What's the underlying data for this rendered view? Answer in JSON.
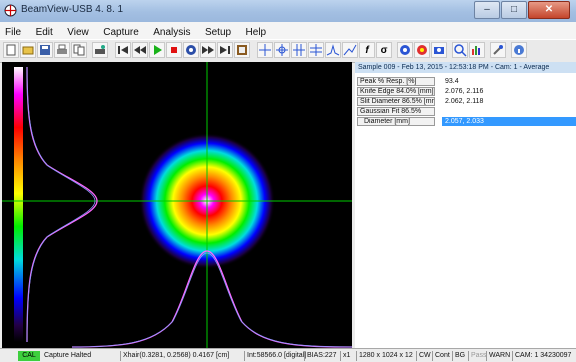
{
  "window": {
    "title": "BeamView-USB 4. 8. 1"
  },
  "menu": [
    "File",
    "Edit",
    "View",
    "Capture",
    "Analysis",
    "Setup",
    "Help"
  ],
  "toolbar": {
    "icons": [
      "new-file-icon",
      "open-folder-icon",
      "save-icon",
      "print-icon",
      "copy-icon",
      "printer-setup-icon",
      "first-frame-icon",
      "previous-frame-icon",
      "play-icon",
      "stop-icon",
      "record-icon",
      "next-frame-icon",
      "last-frame-icon",
      "settings-icon",
      "crosshair-icon",
      "crosshair-move-icon",
      "crosshair-center-icon",
      "crosshair-align-icon",
      "profile-cut-icon",
      "profile-fit-icon",
      "function-icon",
      "sigma-icon",
      "aperture-icon",
      "beam-icon",
      "snapshot-icon",
      "zoom-icon",
      "histogram-icon",
      "wrench-icon",
      "info-icon"
    ]
  },
  "panel": {
    "header": "Sample 009 - Feb 13, 2015 - 12:53:18 PM - Cam: 1 - Average",
    "rows": [
      {
        "label": "Peak % Resp. [%]",
        "value": "93.4",
        "selected": false
      },
      {
        "label": "Knife Edge 84.0% [mm]",
        "value": "2.076, 2.116",
        "selected": false
      },
      {
        "label": "Slit Diameter 86.5% [mm]",
        "value": "2.062, 2.118",
        "selected": false
      },
      {
        "label": "Gaussian Fit 86.5%",
        "value": "",
        "selected": false
      },
      {
        "label": "Diameter [mm]",
        "value": "2.057, 2.033",
        "selected": true
      }
    ]
  },
  "status": {
    "cal": "CAL",
    "state": "Capture Halted",
    "xhair": "Xhair(0.3281, 0.2568) 0.4167 [cm]",
    "intensity": "Int:58566.0 [digital]",
    "bias": "BIAS:227",
    "zoom": "x1",
    "resolution": "1280 x 1024 x 12",
    "mode_cw": "CW",
    "mode_cont": "Cont",
    "mode_bg": "BG",
    "mode_pass": "Pass",
    "warn": "WARN",
    "camera": "CAM: 1 34230097"
  },
  "colors": {
    "crosshair": "#00cc00",
    "selection": "#3399ff",
    "profile": "#ff66ff"
  }
}
